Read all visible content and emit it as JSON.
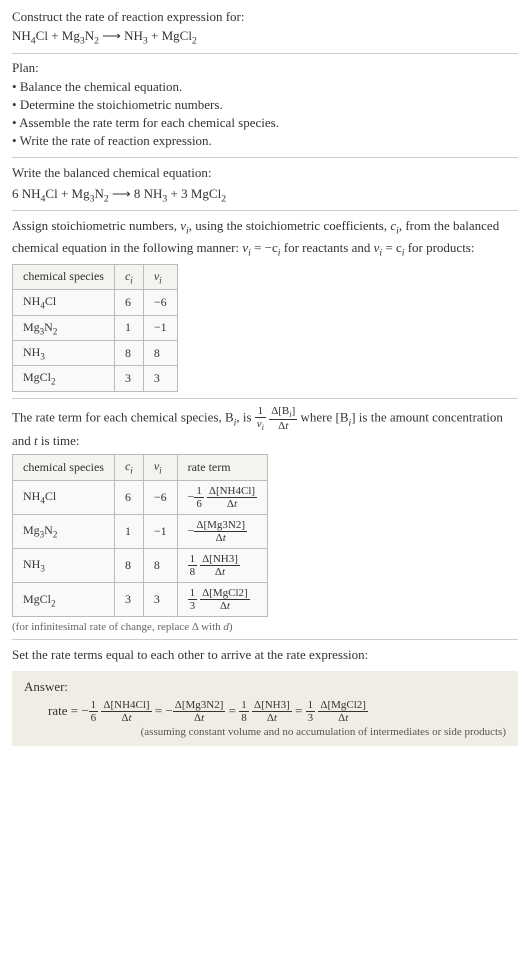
{
  "header": {
    "prompt": "Construct the rate of reaction expression for:",
    "equation_lhs1": "NH",
    "equation_lhs1_sub": "4",
    "equation_lhs1b": "Cl + Mg",
    "equation_lhs1b_sub": "3",
    "equation_lhs1c": "N",
    "equation_lhs1c_sub": "2",
    "arrow": " ⟶ ",
    "equation_rhs1": "NH",
    "equation_rhs1_sub": "3",
    "equation_rhs1b": " + MgCl",
    "equation_rhs1b_sub": "2"
  },
  "plan": {
    "title": "Plan:",
    "items": [
      "Balance the chemical equation.",
      "Determine the stoichiometric numbers.",
      "Assemble the rate term for each chemical species.",
      "Write the rate of reaction expression."
    ]
  },
  "balanced": {
    "intro": "Write the balanced chemical equation:",
    "c1": "6 NH",
    "c1s": "4",
    "c1b": "Cl + Mg",
    "c1bs": "3",
    "c1c": "N",
    "c1cs": "2",
    "arrow": " ⟶ ",
    "c2": "8 NH",
    "c2s": "3",
    "c2b": " + 3 MgCl",
    "c2bs": "2"
  },
  "assign": {
    "text_a": "Assign stoichiometric numbers, ",
    "nu": "ν",
    "nu_sub": "i",
    "text_b": ", using the stoichiometric coefficients, ",
    "c": "c",
    "c_sub": "i",
    "text_c": ", from the balanced chemical equation in the following manner: ",
    "rel1a": "ν",
    "rel1a_sub": "i",
    "rel1b": " = −c",
    "rel1b_sub": "i",
    "text_d": " for reactants and ",
    "rel2a": "ν",
    "rel2a_sub": "i",
    "rel2b": " = c",
    "rel2b_sub": "i",
    "text_e": " for products:"
  },
  "table1": {
    "headers": {
      "species": "chemical species",
      "ci": "c",
      "ci_sub": "i",
      "nui": "ν",
      "nui_sub": "i"
    },
    "rows": [
      {
        "sp_a": "NH",
        "sp_a_sub": "4",
        "sp_b": "Cl",
        "ci": "6",
        "nui": "−6"
      },
      {
        "sp_a": "Mg",
        "sp_a_sub": "3",
        "sp_b": "N",
        "sp_b_sub": "2",
        "ci": "1",
        "nui": "−1"
      },
      {
        "sp_a": "NH",
        "sp_a_sub": "3",
        "sp_b": "",
        "ci": "8",
        "nui": "8"
      },
      {
        "sp_a": "MgCl",
        "sp_a_sub": "2",
        "sp_b": "",
        "ci": "3",
        "nui": "3"
      }
    ]
  },
  "rateterm": {
    "text_a": "The rate term for each chemical species, B",
    "bi_sub": "i",
    "text_b": ", is ",
    "coef_num": "1",
    "coef_den_a": "ν",
    "coef_den_sub": "i",
    "frac_num_a": "Δ[B",
    "frac_num_sub": "i",
    "frac_num_b": "]",
    "frac_den": "Δt",
    "text_c": " where [B",
    "text_c_sub": "i",
    "text_d": "] is the amount concentration and ",
    "t": "t",
    "text_e": " is time:"
  },
  "table2": {
    "headers": {
      "species": "chemical species",
      "ci": "c",
      "ci_sub": "i",
      "nui": "ν",
      "nui_sub": "i",
      "rate": "rate term"
    },
    "rows": [
      {
        "sp_a": "NH",
        "sp_a_sub": "4",
        "sp_b": "Cl",
        "ci": "6",
        "nui": "−6",
        "sign": "−",
        "cnum": "1",
        "cden": "6",
        "d_num": "Δ[NH4Cl]",
        "d_den": "Δt"
      },
      {
        "sp_a": "Mg",
        "sp_a_sub": "3",
        "sp_b": "N",
        "sp_b_sub": "2",
        "ci": "1",
        "nui": "−1",
        "sign": "−",
        "cnum": "",
        "cden": "",
        "d_num": "Δ[Mg3N2]",
        "d_den": "Δt"
      },
      {
        "sp_a": "NH",
        "sp_a_sub": "3",
        "sp_b": "",
        "ci": "8",
        "nui": "8",
        "sign": "",
        "cnum": "1",
        "cden": "8",
        "d_num": "Δ[NH3]",
        "d_den": "Δt"
      },
      {
        "sp_a": "MgCl",
        "sp_a_sub": "2",
        "sp_b": "",
        "ci": "3",
        "nui": "3",
        "sign": "",
        "cnum": "1",
        "cden": "3",
        "d_num": "Δ[MgCl2]",
        "d_den": "Δt"
      }
    ],
    "note": "(for infinitesimal rate of change, replace Δ with d)"
  },
  "final": {
    "intro": "Set the rate terms equal to each other to arrive at the rate expression:"
  },
  "answer": {
    "label": "Answer:",
    "lhs": "rate = ",
    "t1_sign": "−",
    "t1_cnum": "1",
    "t1_cden": "6",
    "t1_num": "Δ[NH4Cl]",
    "t1_den": "Δt",
    "eq": " = ",
    "t2_sign": "−",
    "t2_num": "Δ[Mg3N2]",
    "t2_den": "Δt",
    "t3_cnum": "1",
    "t3_cden": "8",
    "t3_num": "Δ[NH3]",
    "t3_den": "Δt",
    "t4_cnum": "1",
    "t4_cden": "3",
    "t4_num": "Δ[MgCl2]",
    "t4_den": "Δt",
    "note": "(assuming constant volume and no accumulation of intermediates or side products)"
  },
  "colors": {
    "bg": "#ffffff",
    "text": "#333333",
    "border": "#cccccc",
    "table_border": "#bbbbbb",
    "table_bg": "#f9f9f7",
    "answer_bg": "#f0eee4",
    "note": "#666666"
  }
}
